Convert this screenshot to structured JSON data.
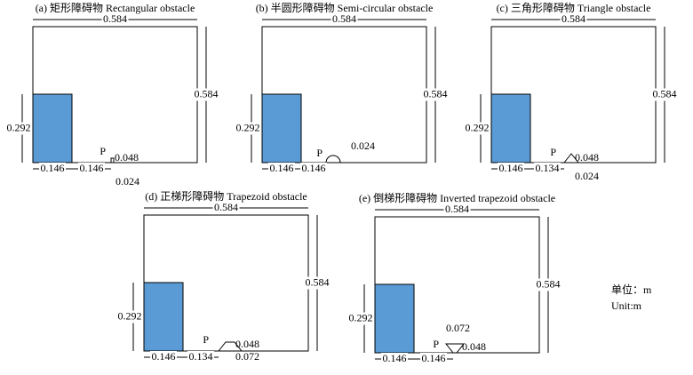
{
  "panels": [
    {
      "title": "(a) 矩形障碍物 Rectangular obstacle",
      "width": "0.584",
      "height": "0.584",
      "block": "0.292",
      "dims": [
        "0.146",
        "0.146"
      ],
      "point": "P",
      "notes": [
        "0.048",
        "0.024"
      ]
    },
    {
      "title": "(b) 半圆形障碍物 Semi-circular obstacle",
      "width": "0.584",
      "height": "0.584",
      "block": "0.292",
      "dims": [
        "0.146",
        "0.146"
      ],
      "point": "P",
      "notes": [
        "0.024"
      ]
    },
    {
      "title": "(c) 三角形障碍物 Triangle obstacle",
      "width": "0.584",
      "height": "0.584",
      "block": "0.292",
      "dims": [
        "0.146",
        "0.134"
      ],
      "point": "P",
      "notes": [
        "0.048",
        "0.024"
      ]
    },
    {
      "title": "(d) 正梯形障碍物 Trapezoid obstacle",
      "width": "0.584",
      "height": "0.584",
      "block": "0.292",
      "dims": [
        "0.146",
        "0.134"
      ],
      "point": "P",
      "notes": [
        "0.048",
        "0.072"
      ]
    },
    {
      "title": "(e) 倒梯形障碍物 Inverted trapezoid obstacle",
      "width": "0.584",
      "height": "0.584",
      "block": "0.292",
      "dims": [
        "0.146",
        "0.146"
      ],
      "point": "P",
      "notes": [
        "0.072",
        "0.048"
      ]
    }
  ],
  "units": [
    "单位：m",
    "Unit:m"
  ]
}
